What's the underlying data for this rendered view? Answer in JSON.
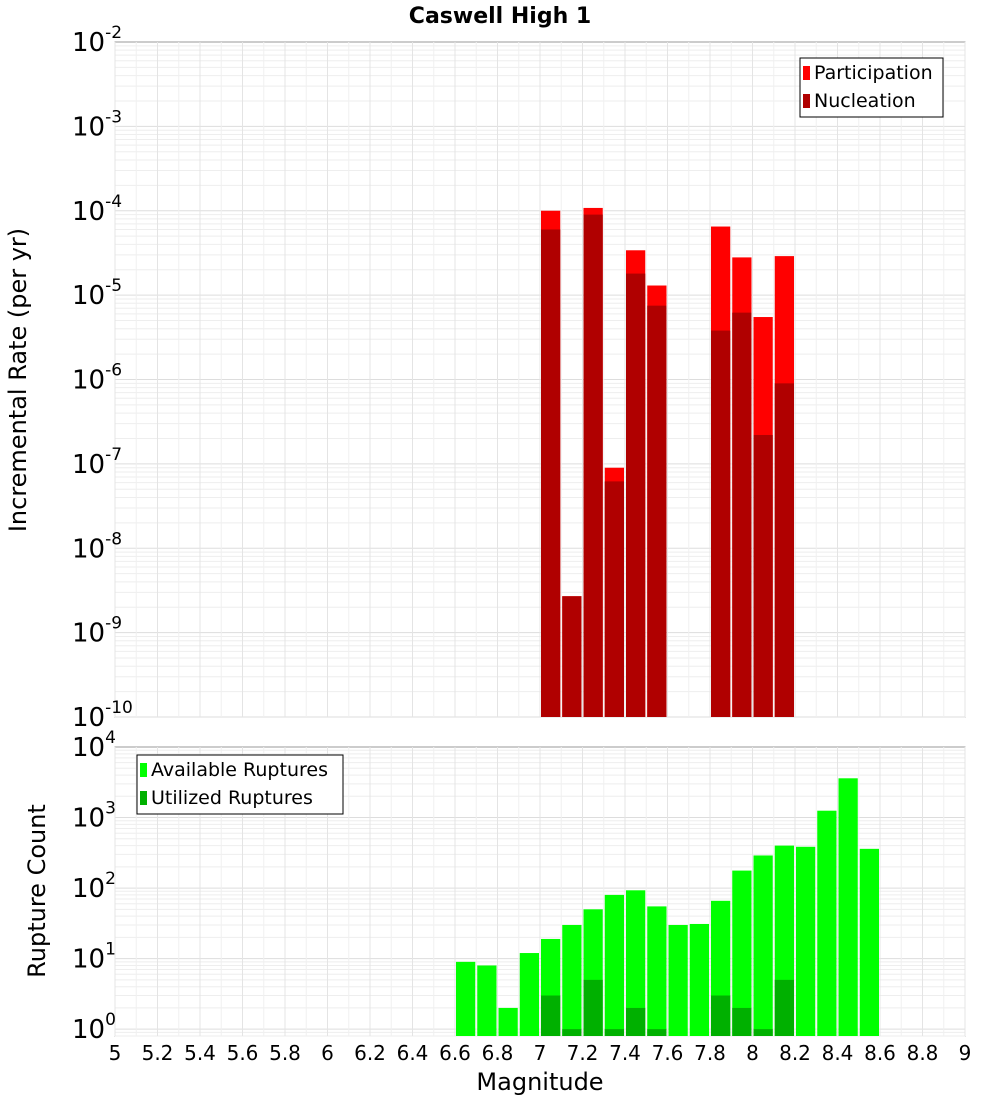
{
  "chart_data": [
    {
      "type": "bar",
      "title": "Caswell High 1",
      "xlabel": "",
      "ylabel": "Incremental Rate (per yr)",
      "yscale": "log",
      "ylim": [
        1e-10,
        0.01
      ],
      "xlim": [
        5,
        9
      ],
      "y_tick_exponents": [
        "-10",
        "-9",
        "-8",
        "-7",
        "-6",
        "-5",
        "-4",
        "-3",
        "-2"
      ],
      "legend": {
        "placement": "top-right",
        "entries": [
          "Participation",
          "Nucleation"
        ]
      },
      "series": [
        {
          "name": "Participation",
          "color": "#ff0000",
          "x": [
            7.05,
            7.15,
            7.25,
            7.35,
            7.45,
            7.55,
            7.85,
            7.95,
            8.05,
            8.15
          ],
          "values": [
            0.0001,
            2.7e-09,
            0.000108,
            9e-08,
            3.4e-05,
            1.3e-05,
            6.5e-05,
            2.8e-05,
            5.5e-06,
            2.9e-05
          ]
        },
        {
          "name": "Nucleation",
          "color": "#b00000",
          "x": [
            7.05,
            7.15,
            7.25,
            7.35,
            7.45,
            7.55,
            7.85,
            7.95,
            8.05,
            8.15
          ],
          "values": [
            6e-05,
            2.7e-09,
            9e-05,
            6.2e-08,
            1.8e-05,
            7.5e-06,
            3.8e-06,
            6.2e-06,
            2.2e-07,
            9e-07
          ]
        }
      ]
    },
    {
      "type": "bar",
      "title": "",
      "xlabel": "Magnitude",
      "ylabel": "Rupture Count",
      "yscale": "log",
      "ylim": [
        0.8,
        10000.0
      ],
      "xlim": [
        5,
        9
      ],
      "x_ticks": [
        "5",
        "5.2",
        "5.4",
        "5.6",
        "5.8",
        "6",
        "6.2",
        "6.4",
        "6.6",
        "6.8",
        "7",
        "7.2",
        "7.4",
        "7.6",
        "7.8",
        "8",
        "8.2",
        "8.4",
        "8.6",
        "8.8",
        "9"
      ],
      "y_tick_exponents": [
        "0",
        "1",
        "2",
        "3",
        "4"
      ],
      "legend": {
        "placement": "top-left",
        "entries": [
          "Available Ruptures",
          "Utilized Ruptures"
        ]
      },
      "series": [
        {
          "name": "Available Ruptures",
          "color": "#00ff00",
          "x": [
            6.65,
            6.75,
            6.85,
            6.95,
            7.05,
            7.15,
            7.25,
            7.35,
            7.45,
            7.55,
            7.65,
            7.75,
            7.85,
            7.95,
            8.05,
            8.15,
            8.25,
            8.35,
            8.45,
            8.55
          ],
          "values": [
            9,
            8,
            2,
            12,
            19,
            30,
            50,
            80,
            93,
            55,
            30,
            31,
            66,
            177,
            290,
            400,
            385,
            1250,
            3600,
            360
          ]
        },
        {
          "name": "Utilized Ruptures",
          "color": "#00b000",
          "x": [
            7.05,
            7.15,
            7.25,
            7.35,
            7.45,
            7.55,
            7.85,
            7.95,
            8.05,
            8.15
          ],
          "values": [
            3,
            1,
            5,
            1,
            2,
            1,
            3,
            2,
            1,
            5
          ]
        }
      ]
    }
  ]
}
